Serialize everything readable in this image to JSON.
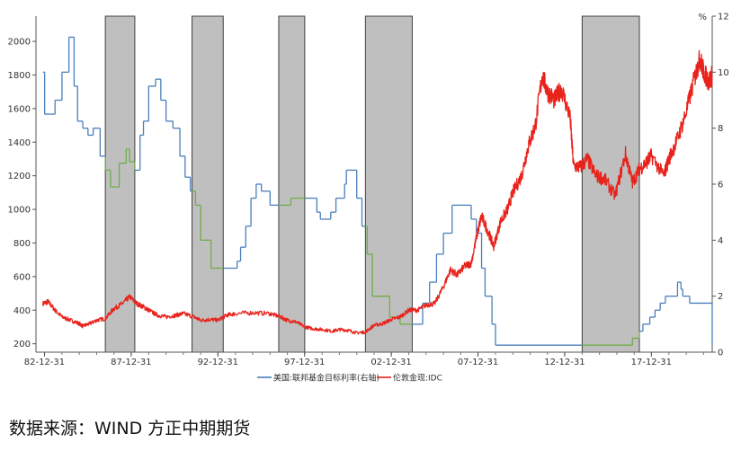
{
  "chart_data": {
    "type": "line",
    "x_ticks": [
      "82-12-31",
      "87-12-31",
      "92-12-31",
      "97-12-31",
      "02-12-31",
      "07-12-31",
      "12-12-31",
      "17-12-31"
    ],
    "x_range": [
      1982.5,
      2021.5
    ],
    "y_left_ticks": [
      200,
      400,
      600,
      800,
      1000,
      1200,
      1400,
      1600,
      1800,
      2000
    ],
    "y_left_range": [
      150,
      2150
    ],
    "y_right_ticks": [
      0,
      2,
      4,
      6,
      8,
      10,
      12
    ],
    "y_right_range": [
      0,
      12
    ],
    "y_right_unit": "%",
    "grid": false,
    "legend_position": "bottom",
    "recessions": [
      [
        1986.5,
        1988.2
      ],
      [
        1991.5,
        1993.3
      ],
      [
        1996.5,
        1998.0
      ],
      [
        2001.5,
        2004.2
      ],
      [
        2014.0,
        2017.3
      ]
    ],
    "series": [
      {
        "name": "美国:联邦基金目标利率(右轴)",
        "axis": "right",
        "color": "#4a7ebb",
        "recession_color": "#70ad47",
        "step": true,
        "x": [
          1982.9,
          1983.0,
          1983.3,
          1983.6,
          1984.0,
          1984.4,
          1984.7,
          1984.9,
          1985.2,
          1985.5,
          1985.8,
          1986.2,
          1986.5,
          1986.8,
          1987.3,
          1987.7,
          1987.9,
          1988.2,
          1988.5,
          1988.7,
          1989.0,
          1989.4,
          1989.7,
          1990.0,
          1990.4,
          1990.8,
          1991.1,
          1991.4,
          1991.7,
          1992.0,
          1992.6,
          1993.5,
          1994.1,
          1994.3,
          1994.6,
          1994.9,
          1995.2,
          1995.5,
          1996.0,
          1997.2,
          1998.7,
          1998.9,
          1999.5,
          1999.8,
          2000.3,
          2000.4,
          2001.0,
          2001.3,
          2001.6,
          2001.9,
          2002.9,
          2003.5,
          2004.5,
          2004.8,
          2005.2,
          2005.6,
          2006.0,
          2006.5,
          2007.6,
          2007.9,
          2008.2,
          2008.4,
          2008.8,
          2009.0,
          2015.9,
          2016.9,
          2017.3,
          2017.5,
          2017.9,
          2018.2,
          2018.5,
          2018.8,
          2019.5,
          2019.7,
          2019.8,
          2020.2,
          2021.5
        ],
        "y": [
          10.0,
          8.5,
          8.5,
          9.0,
          10.0,
          11.25,
          9.5,
          8.25,
          8.0,
          7.75,
          8.0,
          7.0,
          6.5,
          5.9,
          6.75,
          7.25,
          6.8,
          6.5,
          7.75,
          8.25,
          9.5,
          9.75,
          9.0,
          8.25,
          8.0,
          7.0,
          6.25,
          5.75,
          5.25,
          4.0,
          3.0,
          3.0,
          3.25,
          3.75,
          4.5,
          5.5,
          6.0,
          5.75,
          5.25,
          5.5,
          5.0,
          4.75,
          5.0,
          5.5,
          6.0,
          6.5,
          5.5,
          4.5,
          3.5,
          2.0,
          1.25,
          1.0,
          1.0,
          1.75,
          2.5,
          3.5,
          4.25,
          5.25,
          4.75,
          4.25,
          3.0,
          2.0,
          1.0,
          0.25,
          0.25,
          0.5,
          0.75,
          1.0,
          1.25,
          1.5,
          1.75,
          2.0,
          2.5,
          2.25,
          2.0,
          1.75,
          0.25
        ]
      },
      {
        "name": "伦敦金现:IDC",
        "axis": "left",
        "color": "#e8231c",
        "x": [
          1982.9,
          1983.2,
          1983.6,
          1984.0,
          1984.5,
          1985.0,
          1985.2,
          1985.6,
          1986.0,
          1986.5,
          1987.0,
          1987.5,
          1987.9,
          1988.3,
          1988.7,
          1989.0,
          1989.5,
          1990.0,
          1990.6,
          1991.0,
          1991.6,
          1992.0,
          1992.5,
          1993.0,
          1993.5,
          1994.0,
          1995.0,
          1996.0,
          1996.6,
          1997.0,
          1997.5,
          1998.0,
          1998.5,
          1999.0,
          1999.6,
          2000.0,
          2000.5,
          2001.0,
          2001.5,
          2002.0,
          2002.5,
          2003.0,
          2003.5,
          2004.0,
          2004.5,
          2005.0,
          2005.5,
          2006.0,
          2006.4,
          2006.8,
          2007.2,
          2007.6,
          2008.0,
          2008.2,
          2008.6,
          2008.9,
          2009.3,
          2009.7,
          2010.0,
          2010.5,
          2010.9,
          2011.3,
          2011.7,
          2012.0,
          2012.4,
          2012.8,
          2013.3,
          2013.5,
          2013.9,
          2014.3,
          2014.8,
          2015.3,
          2015.9,
          2016.5,
          2016.9,
          2017.3,
          2017.7,
          2018.0,
          2018.7,
          2019.0,
          2019.5,
          2020.0,
          2020.5,
          2020.8,
          2021.0,
          2021.3,
          2021.5
        ],
        "y": [
          440,
          450,
          400,
          360,
          340,
          320,
          305,
          320,
          340,
          350,
          410,
          440,
          480,
          440,
          420,
          400,
          370,
          360,
          370,
          380,
          360,
          340,
          345,
          340,
          370,
          380,
          385,
          380,
          360,
          340,
          330,
          300,
          290,
          285,
          275,
          285,
          280,
          265,
          270,
          310,
          320,
          345,
          360,
          400,
          400,
          430,
          440,
          540,
          640,
          610,
          660,
          680,
          880,
          960,
          860,
          780,
          930,
          1000,
          1100,
          1200,
          1380,
          1500,
          1800,
          1700,
          1650,
          1720,
          1550,
          1260,
          1250,
          1300,
          1200,
          1180,
          1080,
          1330,
          1160,
          1240,
          1280,
          1320,
          1200,
          1300,
          1420,
          1580,
          1790,
          1900,
          1820,
          1760,
          1800
        ]
      }
    ]
  },
  "source": "数据来源：WIND 方正中期期货"
}
